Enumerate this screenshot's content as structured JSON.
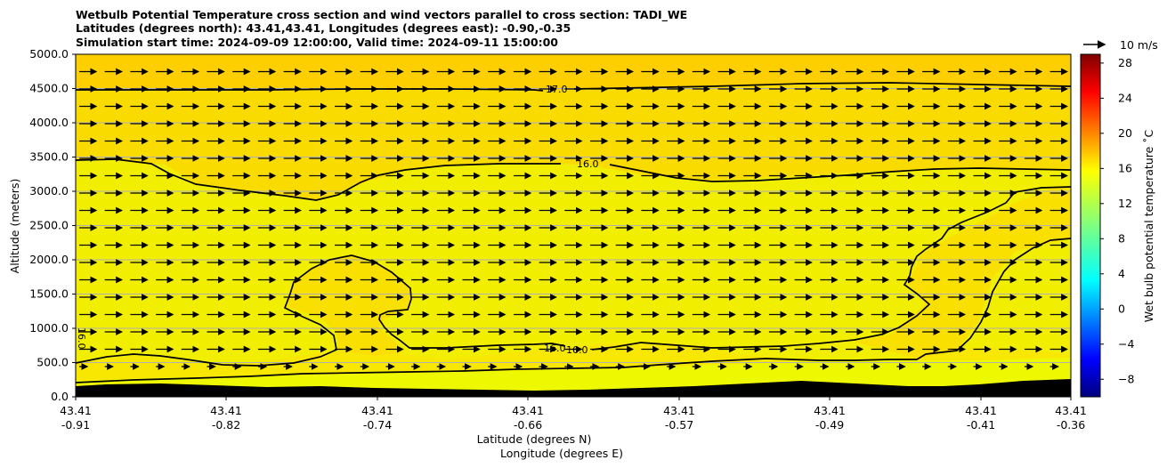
{
  "chart_data": {
    "type": "heatmap",
    "title_lines": [
      "Wetbulb Potential Temperature cross section and wind vectors parallel to cross section: TADI_WE",
      "Latitudes (degrees north): 43.41,43.41, Longitudes (degrees east): -0.90,-0.35",
      "Simulation start time: 2024-09-09 12:00:00, Valid time: 2024-09-11 15:00:00"
    ],
    "xlabel_lat": "Latitude (degrees N)",
    "xlabel_lon": "Longitude (degrees E)",
    "ylabel": "Altitude (meters)",
    "ylim": [
      0,
      5000
    ],
    "y_ticks": [
      "0.0",
      "500.0",
      "1000.0",
      "1500.0",
      "2000.0",
      "2500.0",
      "3000.0",
      "3500.0",
      "4000.0",
      "4500.0",
      "5000.0"
    ],
    "x_ticks": [
      {
        "lat": "43.41",
        "lon": "-0.91"
      },
      {
        "lat": "43.41",
        "lon": "-0.82"
      },
      {
        "lat": "43.41",
        "lon": "-0.74"
      },
      {
        "lat": "43.41",
        "lon": "-0.66"
      },
      {
        "lat": "43.41",
        "lon": "-0.57"
      },
      {
        "lat": "43.41",
        "lon": "-0.49"
      },
      {
        "lat": "43.41",
        "lon": "-0.41"
      },
      {
        "lat": "43.41",
        "lon": "-0.36"
      }
    ],
    "colorbar": {
      "label": "Wet bulb potential temperature ˚C",
      "range": [
        -10,
        29
      ],
      "ticks": [
        "-8",
        "-4",
        "0",
        "4",
        "8",
        "12",
        "16",
        "20",
        "24",
        "28"
      ],
      "colormap": "jet"
    },
    "wind_key_label": "10 m/s",
    "contour_labels": [
      "17.0",
      "16.0",
      "16.0",
      "16.0",
      "16.0"
    ],
    "grid": true,
    "background_color": "#f2ee00",
    "upper_layer_color": "#ffcc00"
  }
}
